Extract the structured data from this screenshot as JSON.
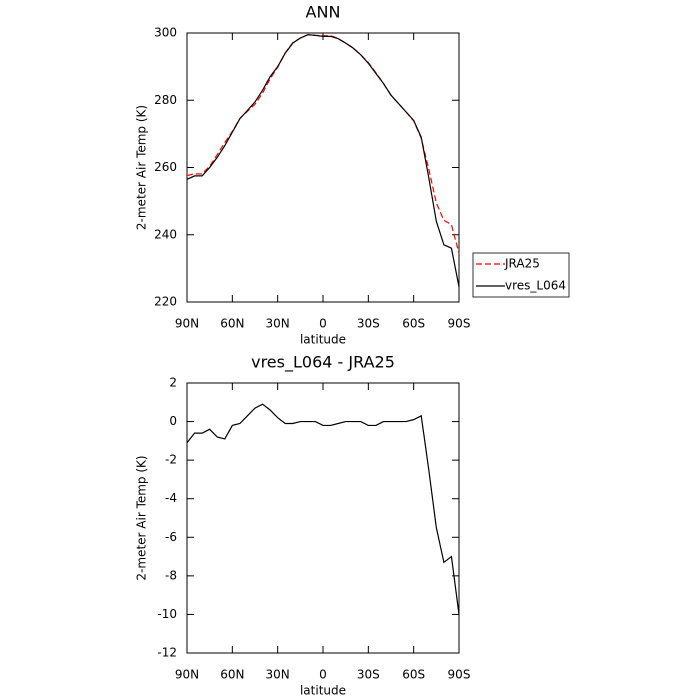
{
  "chart_data": [
    {
      "type": "line",
      "title": "ANN",
      "xlabel": "latitude",
      "ylabel": "2-meter Air Temp (K)",
      "x": [
        90,
        85,
        80,
        75,
        70,
        65,
        60,
        55,
        50,
        45,
        40,
        35,
        30,
        25,
        20,
        15,
        10,
        5,
        0,
        -5,
        -10,
        -15,
        -20,
        -25,
        -30,
        -35,
        -40,
        -45,
        -50,
        -55,
        -60,
        -65,
        -70,
        -75,
        -80,
        -85,
        -90
      ],
      "xlim": [
        90,
        -90
      ],
      "xticks": [
        {
          "value": 90,
          "label": "90N"
        },
        {
          "value": 60,
          "label": "60N"
        },
        {
          "value": 30,
          "label": "30N"
        },
        0,
        {
          "value": -30,
          "label": "30S"
        },
        {
          "value": -60,
          "label": "60S"
        },
        {
          "value": -90,
          "label": "90S"
        }
      ],
      "ylim": [
        220,
        300
      ],
      "yticks": [
        220,
        240,
        260,
        280,
        300
      ],
      "legend": "right",
      "series": [
        {
          "name": "JRA25",
          "color": "#ff0000",
          "dashed": true,
          "values": [
            257.6,
            258.1,
            258.1,
            260.4,
            263.8,
            267.4,
            270.7,
            274.6,
            276.7,
            278.8,
            282.1,
            286.4,
            289.8,
            294.1,
            297.1,
            298.5,
            299.5,
            299.3,
            299.2,
            299.2,
            298.4,
            297,
            295.5,
            293.5,
            291.2,
            288.2,
            285,
            281.5,
            279,
            276.5,
            273.9,
            268.7,
            259.5,
            249.5,
            244.3,
            243,
            234.5
          ]
        },
        {
          "name": "vres_L064",
          "color": "#000000",
          "dashed": false,
          "values": [
            256.5,
            257.5,
            257.5,
            260,
            263,
            266.5,
            270.5,
            274.5,
            277,
            279.5,
            283,
            287,
            290,
            294,
            297,
            298.5,
            299.5,
            299.3,
            299,
            299,
            298.3,
            297,
            295.5,
            293.5,
            291,
            288,
            285,
            281.5,
            279,
            276.5,
            274,
            269,
            257,
            244,
            237,
            236,
            224.5
          ]
        }
      ]
    },
    {
      "type": "line",
      "title": "vres_L064 - JRA25",
      "xlabel": "latitude",
      "ylabel": "2-meter Air Temp (K)",
      "x": [
        90,
        85,
        80,
        75,
        70,
        65,
        60,
        55,
        50,
        45,
        40,
        35,
        30,
        25,
        20,
        15,
        10,
        5,
        0,
        -5,
        -10,
        -15,
        -20,
        -25,
        -30,
        -35,
        -40,
        -45,
        -50,
        -55,
        -60,
        -65,
        -70,
        -75,
        -80,
        -85,
        -90
      ],
      "xlim": [
        90,
        -90
      ],
      "xticks": [
        {
          "value": 90,
          "label": "90N"
        },
        {
          "value": 60,
          "label": "60N"
        },
        {
          "value": 30,
          "label": "30N"
        },
        0,
        {
          "value": -30,
          "label": "30S"
        },
        {
          "value": -60,
          "label": "60S"
        },
        {
          "value": -90,
          "label": "90S"
        }
      ],
      "ylim": [
        -12,
        2
      ],
      "yticks": [
        -12,
        -10,
        -8,
        -6,
        -4,
        -2,
        0,
        2
      ],
      "color": "#000000",
      "values": [
        -1.1,
        -0.6,
        -0.6,
        -0.4,
        -0.8,
        -0.9,
        -0.2,
        -0.1,
        0.3,
        0.7,
        0.9,
        0.6,
        0.2,
        -0.1,
        -0.1,
        0,
        0,
        0,
        -0.2,
        -0.2,
        -0.1,
        0,
        0,
        0,
        -0.2,
        -0.2,
        0,
        0,
        0,
        0,
        0.1,
        0.3,
        -2.5,
        -5.5,
        -7.3,
        -7,
        -10
      ]
    }
  ]
}
